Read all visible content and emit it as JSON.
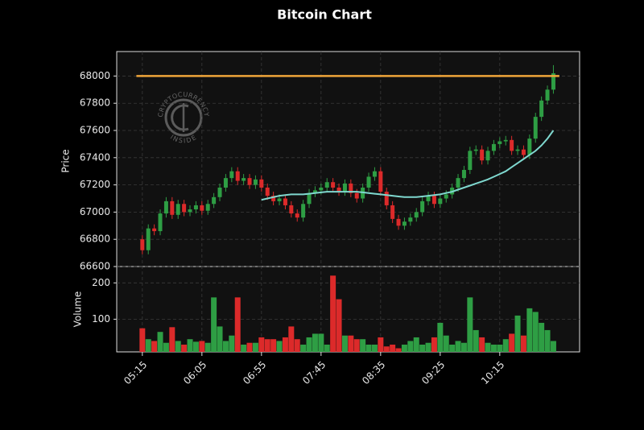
{
  "chart_data": {
    "type": "candlestick",
    "title": "Bitcoin Chart",
    "ylabel": "Price",
    "volume_label": "Volume",
    "watermark": {
      "top": "CRYPTOCURRENCY",
      "bottom": "INSIDE"
    },
    "xlim": [
      -4.3,
      73.4
    ],
    "xticks": [
      {
        "value": 0,
        "label": "05:15"
      },
      {
        "value": 10,
        "label": "06:05"
      },
      {
        "value": 20,
        "label": "06:55"
      },
      {
        "value": 30,
        "label": "07:45"
      },
      {
        "value": 40,
        "label": "08:35"
      },
      {
        "value": 50,
        "label": "09:25"
      },
      {
        "value": 60,
        "label": "10:15"
      }
    ],
    "ylim": [
      66600,
      68180
    ],
    "yticks": [
      66600,
      66800,
      67000,
      67200,
      67400,
      67600,
      67800,
      68000
    ],
    "volume_ylim": [
      10,
      245
    ],
    "volume_yticks": [
      100,
      200
    ],
    "grid": true,
    "up_color": "#2e9e44",
    "down_color": "#dc2a2a",
    "open": [
      66800,
      66720,
      66880,
      66860,
      66990,
      67080,
      66980,
      67060,
      67000,
      67020,
      67050,
      67010,
      67060,
      67110,
      67180,
      67250,
      67300,
      67230,
      67250,
      67200,
      67240,
      67180,
      67120,
      67080,
      67100,
      67050,
      66990,
      66960,
      67060,
      67140,
      67160,
      67180,
      67220,
      67180,
      67150,
      67210,
      67140,
      67100,
      67180,
      67260,
      67300,
      67150,
      67050,
      66950,
      66900,
      66930,
      66960,
      67000,
      67080,
      67120,
      67060,
      67100,
      67130,
      67180,
      67250,
      67310,
      67450,
      67460,
      67380,
      67450,
      67500,
      67520,
      67530,
      67450,
      67460,
      67420,
      67540,
      67700,
      67820,
      67900
    ],
    "high": [
      66830,
      66910,
      66910,
      67020,
      67110,
      67110,
      67090,
      67090,
      67050,
      67080,
      67080,
      67090,
      67140,
      67210,
      67280,
      67330,
      67330,
      67280,
      67280,
      67270,
      67270,
      67210,
      67150,
      67130,
      67130,
      67080,
      67020,
      67090,
      67170,
      67190,
      67210,
      67250,
      67250,
      67210,
      67240,
      67240,
      67170,
      67210,
      67290,
      67330,
      67330,
      67180,
      67080,
      66980,
      66960,
      66990,
      67030,
      67110,
      67150,
      67150,
      67130,
      67160,
      67210,
      67280,
      67340,
      67480,
      67490,
      67490,
      67480,
      67530,
      67550,
      67560,
      67560,
      67490,
      67490,
      67570,
      67730,
      67850,
      67930,
      68080
    ],
    "low": [
      66690,
      66690,
      66830,
      66830,
      66960,
      66950,
      66950,
      66970,
      66970,
      66990,
      66980,
      66980,
      67030,
      67080,
      67150,
      67220,
      67200,
      67200,
      67170,
      67170,
      67150,
      67090,
      67050,
      67050,
      67020,
      66960,
      66930,
      66930,
      67030,
      67110,
      67130,
      67150,
      67150,
      67120,
      67120,
      67110,
      67070,
      67070,
      67150,
      67230,
      67120,
      67020,
      66920,
      66870,
      66870,
      66900,
      66930,
      66970,
      67050,
      67030,
      67030,
      67070,
      67100,
      67150,
      67220,
      67280,
      67420,
      67350,
      67350,
      67420,
      67470,
      67490,
      67420,
      67420,
      67390,
      67390,
      67510,
      67670,
      67790,
      67870
    ],
    "close": [
      66720,
      66880,
      66860,
      66990,
      67080,
      66980,
      67060,
      67000,
      67020,
      67050,
      67010,
      67060,
      67110,
      67180,
      67250,
      67300,
      67230,
      67250,
      67200,
      67240,
      67180,
      67120,
      67080,
      67100,
      67050,
      66990,
      66960,
      67060,
      67140,
      67160,
      67180,
      67220,
      67180,
      67150,
      67210,
      67140,
      67100,
      67180,
      67260,
      67300,
      67150,
      67050,
      66950,
      66900,
      66930,
      66960,
      67000,
      67080,
      67120,
      67060,
      67100,
      67130,
      67180,
      67250,
      67310,
      67450,
      67460,
      67380,
      67450,
      67500,
      67520,
      67530,
      67450,
      67460,
      67420,
      67540,
      67700,
      67820,
      67900,
      68020
    ],
    "volume": [
      75,
      45,
      40,
      65,
      35,
      78,
      40,
      30,
      45,
      38,
      40,
      35,
      160,
      80,
      40,
      55,
      160,
      30,
      35,
      35,
      50,
      45,
      45,
      40,
      50,
      80,
      45,
      30,
      50,
      60,
      60,
      30,
      220,
      155,
      55,
      55,
      45,
      45,
      30,
      30,
      50,
      25,
      30,
      20,
      30,
      40,
      50,
      30,
      35,
      50,
      90,
      55,
      30,
      40,
      35,
      160,
      70,
      50,
      35,
      30,
      30,
      45,
      60,
      110,
      55,
      130,
      120,
      90,
      70,
      40
    ],
    "moving_average": {
      "color": "#7fd8cf",
      "values": [
        null,
        null,
        null,
        null,
        null,
        null,
        null,
        null,
        null,
        null,
        null,
        null,
        null,
        null,
        null,
        null,
        null,
        null,
        null,
        null,
        67090,
        67100,
        67110,
        67120,
        67125,
        67130,
        67130,
        67130,
        67135,
        67140,
        67145,
        67150,
        67150,
        67150,
        67150,
        67150,
        67150,
        67145,
        67140,
        67135,
        67130,
        67125,
        67120,
        67115,
        67110,
        67110,
        67110,
        67115,
        67120,
        67125,
        67130,
        67140,
        67150,
        67165,
        67180,
        67195,
        67210,
        67225,
        67240,
        67260,
        67280,
        67300,
        67330,
        67360,
        67390,
        67420,
        67450,
        67490,
        67540,
        67600
      ]
    },
    "hline": {
      "value": 68000,
      "color": "#f0a53a",
      "from": -1,
      "to": 70
    }
  }
}
